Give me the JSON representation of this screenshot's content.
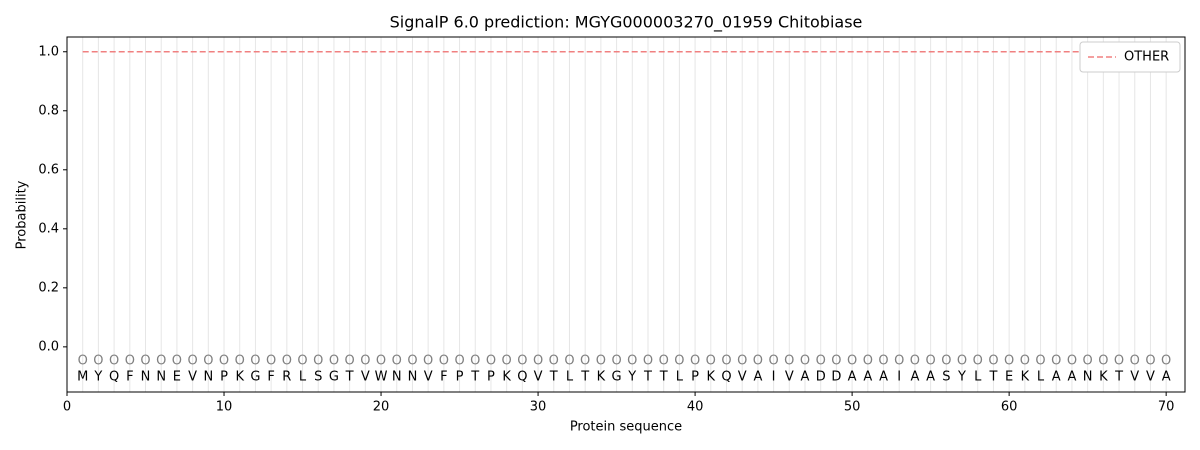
{
  "chart_data": {
    "type": "line",
    "title": "SignalP 6.0 prediction: MGYG000003270_01959 Chitobiase",
    "x_label": "Protein sequence",
    "y_label": "Probability",
    "x": [
      1,
      2,
      3,
      4,
      5,
      6,
      7,
      8,
      9,
      10,
      11,
      12,
      13,
      14,
      15,
      16,
      17,
      18,
      19,
      20,
      21,
      22,
      23,
      24,
      25,
      26,
      27,
      28,
      29,
      30,
      31,
      32,
      33,
      34,
      35,
      36,
      37,
      38,
      39,
      40,
      41,
      42,
      43,
      44,
      45,
      46,
      47,
      48,
      49,
      50,
      51,
      52,
      53,
      54,
      55,
      56,
      57,
      58,
      59,
      60,
      61,
      62,
      63,
      64,
      65,
      66,
      67,
      68,
      69,
      70
    ],
    "sequence": [
      "M",
      "Y",
      "Q",
      "F",
      "N",
      "N",
      "E",
      "V",
      "N",
      "P",
      "K",
      "G",
      "F",
      "R",
      "L",
      "S",
      "G",
      "T",
      "V",
      "W",
      "N",
      "N",
      "V",
      "F",
      "P",
      "T",
      "P",
      "K",
      "Q",
      "V",
      "T",
      "L",
      "T",
      "K",
      "G",
      "Y",
      "T",
      "T",
      "L",
      "P",
      "K",
      "Q",
      "V",
      "A",
      "I",
      "V",
      "A",
      "D",
      "D",
      "A",
      "A",
      "A",
      "I",
      "A",
      "A",
      "S",
      "Y",
      "L",
      "T",
      "E",
      "K",
      "L",
      "A",
      "A",
      "N",
      "K",
      "T",
      "V",
      "V",
      "A"
    ],
    "state_labels": [
      "O",
      "O",
      "O",
      "O",
      "O",
      "O",
      "O",
      "O",
      "O",
      "O",
      "O",
      "O",
      "O",
      "O",
      "O",
      "O",
      "O",
      "O",
      "O",
      "O",
      "O",
      "O",
      "O",
      "O",
      "O",
      "O",
      "O",
      "O",
      "O",
      "O",
      "O",
      "O",
      "O",
      "O",
      "O",
      "O",
      "O",
      "O",
      "O",
      "O",
      "O",
      "O",
      "O",
      "O",
      "O",
      "O",
      "O",
      "O",
      "O",
      "O",
      "O",
      "O",
      "O",
      "O",
      "O",
      "O",
      "O",
      "O",
      "O",
      "O",
      "O",
      "O",
      "O",
      "O",
      "O",
      "O",
      "O",
      "O",
      "O",
      "O"
    ],
    "series": [
      {
        "name": "OTHER",
        "color": "#f08080",
        "dashed": true,
        "values": [
          1,
          1,
          1,
          1,
          1,
          1,
          1,
          1,
          1,
          1,
          1,
          1,
          1,
          1,
          1,
          1,
          1,
          1,
          1,
          1,
          1,
          1,
          1,
          1,
          1,
          1,
          1,
          1,
          1,
          1,
          1,
          1,
          1,
          1,
          1,
          1,
          1,
          1,
          1,
          1,
          1,
          1,
          1,
          1,
          1,
          1,
          1,
          1,
          1,
          1,
          1,
          1,
          1,
          1,
          1,
          1,
          1,
          1,
          1,
          1,
          1,
          1,
          1,
          1,
          1,
          1,
          1,
          1,
          1,
          1
        ]
      }
    ],
    "xlim": [
      0,
      71.2
    ],
    "xticks": [
      0,
      10,
      20,
      30,
      40,
      50,
      60,
      70
    ],
    "ylim": [
      -0.153,
      1.05
    ],
    "yticks": [
      {
        "value": 0,
        "label": "0.0"
      },
      {
        "value": 0.2,
        "label": "0.2"
      },
      {
        "value": 0.4,
        "label": "0.4"
      },
      {
        "value": 0.6,
        "label": "0.6"
      },
      {
        "value": 0.8,
        "label": "0.8"
      },
      {
        "value": 1,
        "label": "1.0"
      }
    ],
    "legend": "upper right"
  }
}
